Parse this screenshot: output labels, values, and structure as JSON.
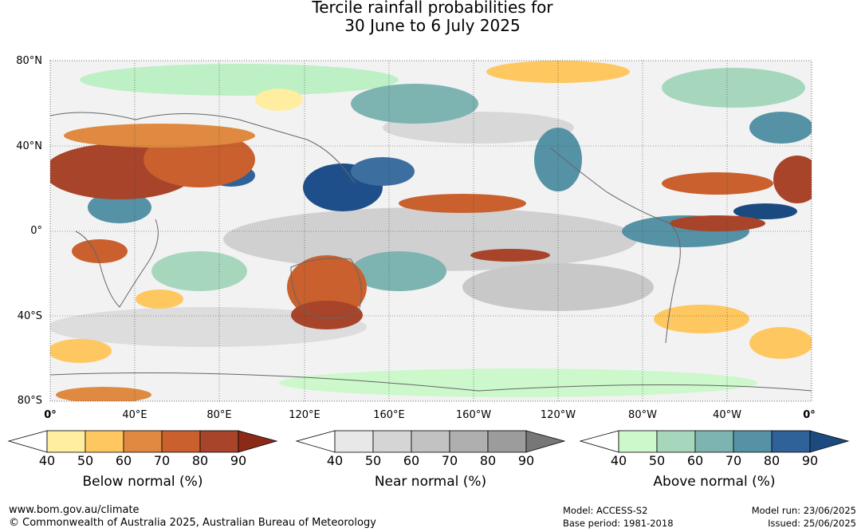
{
  "title": {
    "line1": "Tercile rainfall probabilities for",
    "line2": "30 June to 6 July 2025"
  },
  "latitude_labels": [
    "80°N",
    "40°N",
    "0°",
    "40°S",
    "80°S"
  ],
  "longitude_labels": [
    "0°",
    "40°E",
    "80°E",
    "120°E",
    "160°E",
    "160°W",
    "120°W",
    "80°W",
    "40°W",
    "0°"
  ],
  "scales": [
    {
      "caption": "Below normal (%)",
      "ticks": [
        "40",
        "50",
        "60",
        "70",
        "80",
        "90"
      ],
      "colors": [
        "#ffffff",
        "#ffeda0",
        "#fec760",
        "#df8a40",
        "#c9602e",
        "#a8442a",
        "#8c2a18"
      ]
    },
    {
      "caption": "Near normal (%)",
      "ticks": [
        "40",
        "50",
        "60",
        "70",
        "80",
        "90"
      ],
      "colors": [
        "#ffffff",
        "#e8e8e8",
        "#d5d5d5",
        "#c2c2c2",
        "#afafaf",
        "#9c9c9c",
        "#777777"
      ]
    },
    {
      "caption": "Above normal (%)",
      "ticks": [
        "40",
        "50",
        "60",
        "70",
        "80",
        "90"
      ],
      "colors": [
        "#ffffff",
        "#ccf8cc",
        "#a6d7bd",
        "#7db4b1",
        "#5592a6",
        "#30629a",
        "#1a4a80"
      ]
    }
  ],
  "footer": {
    "url": "www.bom.gov.au/climate",
    "copyright": "© Commonwealth of Australia 2025, Australian Bureau of Meteorology",
    "model": "Model: ACCESS-S2",
    "base_period": "Base period: 1981-2018",
    "model_run": "Model run: 23/06/2025",
    "issued": "Issued: 25/06/2025"
  }
}
